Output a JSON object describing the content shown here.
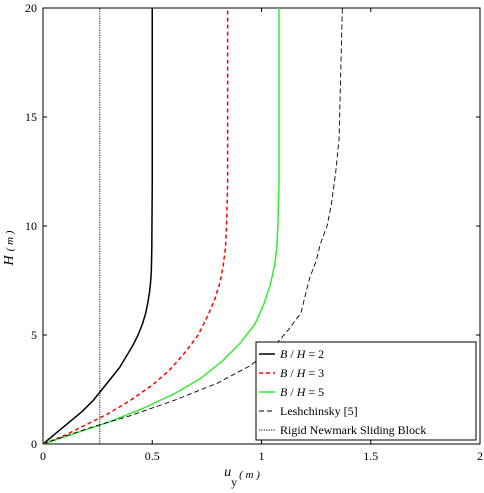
{
  "chart_data": {
    "type": "line",
    "xlabel_main": "u",
    "xlabel_sub": "y",
    "xlabel_unit": "( m )",
    "ylabel_main": "H",
    "ylabel_unit": "( m )",
    "xlim": [
      0,
      2
    ],
    "ylim": [
      0,
      20
    ],
    "xticks": [
      0,
      0.5,
      1,
      1.5,
      2
    ],
    "xtick_labels": [
      "0",
      "0.5",
      "1",
      "1.5",
      "2"
    ],
    "yticks": [
      0,
      5,
      10,
      15,
      20
    ],
    "ytick_labels": [
      "0",
      "5",
      "10",
      "15",
      "20"
    ],
    "grid": false,
    "legend_position": "bottom-right",
    "series": [
      {
        "name": "B / H = 2",
        "label_parts": [
          "B",
          " / ",
          "H",
          " = 2"
        ],
        "color": "#000000",
        "style": "solid",
        "x": [
          0.0,
          0.06,
          0.12,
          0.18,
          0.23,
          0.27,
          0.31,
          0.35,
          0.38,
          0.41,
          0.435,
          0.455,
          0.47,
          0.48,
          0.488,
          0.493,
          0.496,
          0.498,
          0.5,
          0.5
        ],
        "y": [
          0.0,
          0.5,
          1.0,
          1.5,
          2.0,
          2.5,
          3.0,
          3.5,
          4.0,
          4.5,
          5.0,
          5.5,
          6.0,
          6.5,
          7.0,
          7.5,
          8.0,
          9.0,
          12.0,
          20.0
        ]
      },
      {
        "name": "B / H = 3",
        "label_parts": [
          "B",
          " / ",
          "H",
          " = 3"
        ],
        "color": "#ff0000",
        "style": "dashed",
        "x": [
          0.0,
          0.1,
          0.2,
          0.3,
          0.4,
          0.5,
          0.58,
          0.65,
          0.71,
          0.75,
          0.785,
          0.81,
          0.825,
          0.835,
          0.84,
          0.845,
          0.845
        ],
        "y": [
          0.0,
          0.4,
          0.9,
          1.4,
          2.0,
          2.7,
          3.4,
          4.2,
          5.0,
          5.8,
          6.6,
          7.4,
          8.2,
          9.0,
          10.0,
          12.0,
          20.0
        ]
      },
      {
        "name": "B / H = 5",
        "label_parts": [
          "B",
          " / ",
          "H",
          " = 5"
        ],
        "color": "#33ee33",
        "style": "solid",
        "x": [
          0.0,
          0.15,
          0.3,
          0.45,
          0.6,
          0.72,
          0.82,
          0.9,
          0.97,
          1.01,
          1.04,
          1.06,
          1.07,
          1.075,
          1.08,
          1.08
        ],
        "y": [
          0.0,
          0.5,
          1.0,
          1.6,
          2.3,
          3.0,
          3.8,
          4.6,
          5.5,
          6.4,
          7.3,
          8.2,
          9.0,
          10.0,
          12.0,
          20.0
        ]
      },
      {
        "name": "Leshchinsky [5]",
        "label_parts": [
          "Leshchinsky [5]"
        ],
        "color": "#000000",
        "style": "thindash",
        "x": [
          0.0,
          0.2,
          0.4,
          0.6,
          0.8,
          0.95,
          1.05,
          1.12,
          1.18,
          1.2,
          1.22,
          1.25,
          1.27,
          1.3,
          1.32,
          1.34,
          1.355,
          1.36,
          1.365,
          1.37
        ],
        "y": [
          0.0,
          0.7,
          1.3,
          2.0,
          2.8,
          3.6,
          4.4,
          5.2,
          6.0,
          6.8,
          7.6,
          8.4,
          9.2,
          10.0,
          11.0,
          12.5,
          14.0,
          16.0,
          18.0,
          20.0
        ]
      },
      {
        "name": "Rigid Newmark Sliding Block",
        "label_parts": [
          "Rigid Newmark Sliding Block"
        ],
        "color": "#000000",
        "style": "dotted",
        "x": [
          0.26,
          0.26
        ],
        "y": [
          0.0,
          20.0
        ]
      }
    ]
  }
}
